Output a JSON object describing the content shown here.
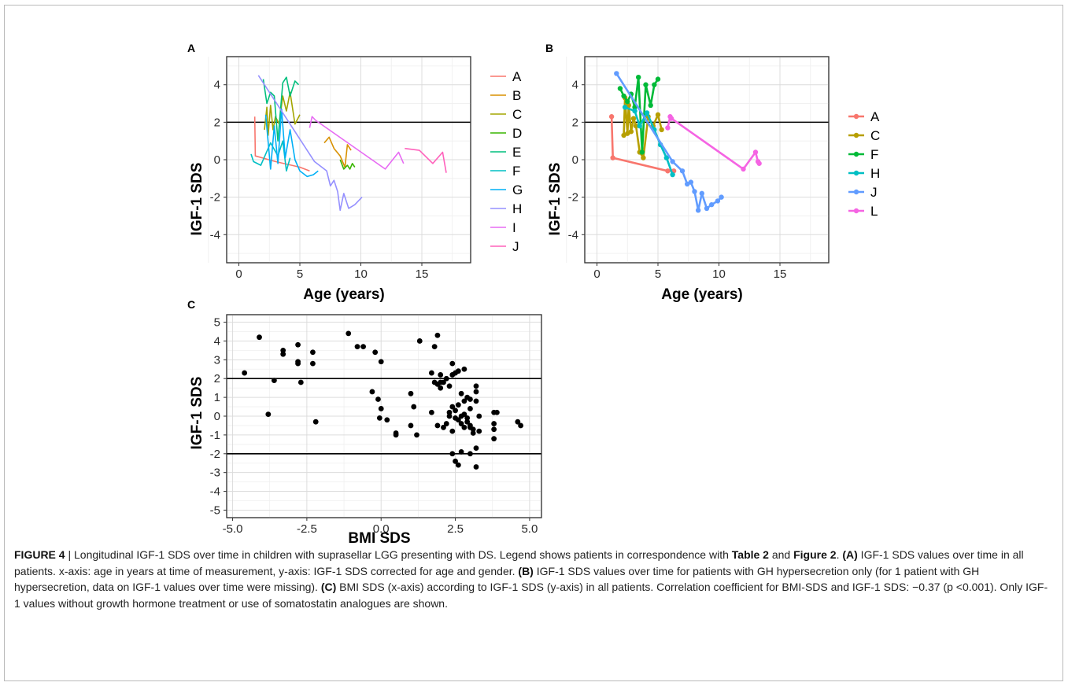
{
  "figure": {
    "number_label": "FIGURE 4"
  },
  "panels": [
    {
      "tag": "A",
      "xlabel": "Age (years)",
      "ylabel": "IGF-1 SDS",
      "xticks": [
        "0",
        "5",
        "10",
        "15"
      ],
      "yticks": [
        "-4",
        "-2",
        "0",
        "2",
        "4"
      ]
    },
    {
      "tag": "B",
      "xlabel": "Age (years)",
      "ylabel": "IGF-1 SDS",
      "xticks": [
        "0",
        "5",
        "10",
        "15"
      ],
      "yticks": [
        "-4",
        "-2",
        "0",
        "2",
        "4"
      ]
    },
    {
      "tag": "C",
      "xlabel": "BMI SDS",
      "ylabel": "IGF-1 SDS",
      "xticks": [
        "-5.0",
        "-2.5",
        "0.0",
        "2.5",
        "5.0"
      ],
      "yticks": [
        "-5",
        "-4",
        "-3",
        "-2",
        "-1",
        "0",
        "1",
        "2",
        "3",
        "4",
        "5"
      ]
    }
  ],
  "caption": {
    "figure_label": "FIGURE 4",
    "separator": " | ",
    "s1": "Longitudinal IGF-1 SDS over time in children with suprasellar LGG presenting with DS. Legend shows patients in correspondence with ",
    "ref_table": "Table 2",
    "s2": " and ",
    "ref_figure": "Figure 2",
    "s3": ". ",
    "tag_a": "(A)",
    "s4": " IGF-1 SDS values over time in all patients. x-axis: age in years at time of measurement, y-axis: IGF-1 SDS corrected for age and gender. ",
    "tag_b": "(B)",
    "s5": " IGF-1 SDS values over time for patients with GH hypersecretion only (for 1 patient with GH hypersecretion, data on IGF-1 values over time were missing). ",
    "tag_c": "(C)",
    "s6": " BMI SDS (x-axis) according to IGF-1 SDS (y-axis) in all patients. Correlation coefficient for BMI-SDS and IGF-1 SDS: −0.37 (p <0.001). Only IGF-1 values without growth hormone treatment or use of somatostatin analogues are shown."
  },
  "chart_data": [
    {
      "panel": "A",
      "type": "line",
      "xlabel": "Age (years)",
      "ylabel": "IGF-1 SDS",
      "xlim": [
        -1,
        19
      ],
      "ylim": [
        -5.5,
        5.5
      ],
      "reference_lines_y": [
        2
      ],
      "grid": true,
      "legend_position": "right",
      "series": [
        {
          "name": "A",
          "color": "#F8766D",
          "x": [
            1.3,
            1.35,
            3.0,
            5.0,
            5.8
          ],
          "y": [
            2.3,
            0.2,
            -0.1,
            -0.4,
            -0.6
          ]
        },
        {
          "name": "B",
          "color": "#D89000",
          "x": [
            7.0,
            7.4,
            7.8,
            8.3,
            8.7,
            8.9,
            9.2
          ],
          "y": [
            0.9,
            1.2,
            0.6,
            0.2,
            -0.4,
            0.8,
            0.5
          ]
        },
        {
          "name": "C",
          "color": "#A3A500",
          "x": [
            2.1,
            2.3,
            2.4,
            2.6,
            2.8,
            3.0,
            3.3,
            3.6,
            3.9,
            4.2,
            4.6,
            5.0
          ],
          "y": [
            1.6,
            2.8,
            1.3,
            2.9,
            1.6,
            2.3,
            1.9,
            3.4,
            2.6,
            3.6,
            1.9,
            2.4
          ]
        },
        {
          "name": "D",
          "color": "#39B600",
          "x": [
            8.3,
            8.6,
            8.9,
            9.1,
            9.3,
            9.5
          ],
          "y": [
            0.0,
            -0.5,
            -0.3,
            -0.5,
            -0.2,
            -0.4
          ]
        },
        {
          "name": "E",
          "color": "#00BF7D",
          "x": [
            2.0,
            2.3,
            2.6,
            2.9,
            3.2,
            3.6,
            3.9,
            4.2,
            4.6,
            4.9
          ],
          "y": [
            4.3,
            3.0,
            3.6,
            3.4,
            1.0,
            4.1,
            4.4,
            3.4,
            4.2,
            4.0
          ]
        },
        {
          "name": "F",
          "color": "#00BFC4",
          "x": [
            1.0,
            1.2,
            1.8,
            2.6,
            3.2,
            3.6,
            3.9,
            4.2
          ],
          "y": [
            0.3,
            -0.1,
            -0.3,
            0.9,
            0.2,
            1.0,
            -0.6,
            0.1
          ]
        },
        {
          "name": "G",
          "color": "#00B0F6",
          "x": [
            2.2,
            2.6,
            2.9,
            3.2,
            3.5,
            3.8,
            4.2,
            4.6,
            5.0,
            5.6,
            6.1,
            6.5
          ],
          "y": [
            2.4,
            -0.5,
            1.8,
            -0.2,
            2.7,
            0.1,
            1.6,
            0.0,
            -0.6,
            -0.9,
            -0.8,
            -0.6
          ]
        },
        {
          "name": "H",
          "color": "#9590FF",
          "x": [
            1.6,
            6.2,
            7.2,
            7.5,
            7.8,
            8.1,
            8.3,
            8.6,
            9.0,
            9.5,
            10.1
          ],
          "y": [
            4.5,
            -0.1,
            -0.6,
            -1.4,
            -1.1,
            -1.7,
            -2.7,
            -1.8,
            -2.6,
            -2.4,
            -2.0
          ]
        },
        {
          "name": "I",
          "color": "#E76BF3",
          "x": [
            5.8,
            6.0,
            6.3,
            12.0,
            13.1,
            13.5
          ],
          "y": [
            1.7,
            2.3,
            2.1,
            -0.5,
            0.4,
            -0.2
          ]
        },
        {
          "name": "J",
          "color": "#FF62BC",
          "x": [
            13.6,
            14.8,
            15.9,
            16.7,
            17.0
          ],
          "y": [
            0.6,
            0.5,
            -0.2,
            0.4,
            -0.7
          ]
        }
      ]
    },
    {
      "panel": "B",
      "type": "line",
      "xlabel": "Age (years)",
      "ylabel": "IGF-1 SDS",
      "xlim": [
        -1,
        19
      ],
      "ylim": [
        -5.5,
        5.5
      ],
      "reference_lines_y": [
        2
      ],
      "grid": true,
      "legend_position": "right",
      "markers": true,
      "series": [
        {
          "name": "A",
          "color": "#F8766D",
          "x": [
            1.2,
            1.3,
            5.8,
            6.3
          ],
          "y": [
            2.3,
            0.1,
            -0.6,
            -0.6
          ]
        },
        {
          "name": "C",
          "color": "#B79F00",
          "x": [
            2.2,
            2.3,
            2.5,
            2.6,
            2.8,
            3.0,
            3.2,
            3.5,
            3.8,
            4.2,
            4.6,
            5.0,
            5.3
          ],
          "y": [
            1.3,
            3.3,
            1.4,
            2.9,
            1.5,
            2.2,
            1.8,
            0.4,
            0.1,
            2.3,
            1.8,
            2.4,
            1.6
          ]
        },
        {
          "name": "F",
          "color": "#00BA38",
          "x": [
            1.9,
            2.2,
            2.5,
            2.8,
            3.1,
            3.4,
            3.7,
            4.0,
            4.4,
            4.7,
            5.0
          ],
          "y": [
            3.8,
            3.4,
            3.1,
            3.5,
            2.8,
            4.4,
            0.4,
            4.0,
            2.9,
            4.0,
            4.3
          ]
        },
        {
          "name": "H",
          "color": "#00BFC4",
          "x": [
            2.3,
            3.1,
            3.5,
            4.1,
            4.7,
            5.2,
            5.7,
            6.2
          ],
          "y": [
            2.8,
            2.6,
            1.8,
            2.5,
            1.6,
            0.8,
            0.1,
            -0.8
          ]
        },
        {
          "name": "J",
          "color": "#619CFF",
          "x": [
            1.6,
            6.2,
            7.0,
            7.4,
            7.7,
            8.0,
            8.3,
            8.6,
            9.0,
            9.4,
            9.9,
            10.2
          ],
          "y": [
            4.6,
            -0.1,
            -0.6,
            -1.3,
            -1.2,
            -1.7,
            -2.7,
            -1.8,
            -2.6,
            -2.4,
            -2.2,
            -2.0
          ]
        },
        {
          "name": "L",
          "color": "#F564E3",
          "x": [
            5.8,
            6.0,
            6.1,
            12.0,
            13.0,
            13.2,
            13.3
          ],
          "y": [
            1.7,
            2.3,
            2.2,
            -0.5,
            0.4,
            -0.1,
            -0.2
          ]
        }
      ]
    },
    {
      "panel": "C",
      "type": "scatter",
      "xlabel": "BMI SDS",
      "ylabel": "IGF-1 SDS",
      "xlim": [
        -5.2,
        5.4
      ],
      "ylim": [
        -5.4,
        5.4
      ],
      "reference_lines_y": [
        2,
        -2
      ],
      "grid": true,
      "points": [
        [
          -4.6,
          2.3
        ],
        [
          -4.1,
          4.2
        ],
        [
          -3.8,
          0.1
        ],
        [
          -3.6,
          1.9
        ],
        [
          -3.3,
          3.5
        ],
        [
          -3.3,
          3.3
        ],
        [
          -2.8,
          3.8
        ],
        [
          -2.8,
          2.9
        ],
        [
          -2.8,
          2.8
        ],
        [
          -2.7,
          1.8
        ],
        [
          -2.3,
          3.4
        ],
        [
          -2.3,
          2.8
        ],
        [
          -2.2,
          -0.3
        ],
        [
          -1.1,
          4.4
        ],
        [
          -0.8,
          3.7
        ],
        [
          -0.6,
          3.7
        ],
        [
          -0.3,
          1.3
        ],
        [
          -0.2,
          3.4
        ],
        [
          -0.1,
          0.9
        ],
        [
          0.0,
          2.9
        ],
        [
          0.0,
          0.4
        ],
        [
          -0.05,
          -0.1
        ],
        [
          0.2,
          -0.2
        ],
        [
          0.5,
          -0.9
        ],
        [
          0.5,
          -1.0
        ],
        [
          1.0,
          1.2
        ],
        [
          1.0,
          -0.5
        ],
        [
          1.1,
          0.5
        ],
        [
          1.2,
          -1.0
        ],
        [
          1.3,
          4.0
        ],
        [
          1.7,
          2.3
        ],
        [
          1.8,
          3.7
        ],
        [
          1.8,
          1.8
        ],
        [
          1.9,
          4.3
        ],
        [
          1.9,
          1.7
        ],
        [
          1.7,
          0.2
        ],
        [
          2.0,
          2.2
        ],
        [
          2.0,
          1.8
        ],
        [
          2.0,
          1.5
        ],
        [
          2.1,
          1.8
        ],
        [
          2.2,
          2.0
        ],
        [
          2.3,
          1.6
        ],
        [
          1.9,
          -0.5
        ],
        [
          2.1,
          -0.6
        ],
        [
          2.2,
          -0.4
        ],
        [
          2.3,
          0.0
        ],
        [
          2.4,
          2.8
        ],
        [
          2.4,
          2.2
        ],
        [
          2.5,
          2.3
        ],
        [
          2.6,
          2.4
        ],
        [
          2.8,
          2.5
        ],
        [
          2.4,
          0.5
        ],
        [
          2.5,
          0.3
        ],
        [
          2.6,
          -0.2
        ],
        [
          2.7,
          -0.4
        ],
        [
          2.8,
          0.1
        ],
        [
          2.9,
          -0.3
        ],
        [
          2.3,
          0.2
        ],
        [
          2.4,
          -0.8
        ],
        [
          2.5,
          -0.1
        ],
        [
          2.6,
          0.6
        ],
        [
          2.7,
          0.0
        ],
        [
          2.8,
          0.8
        ],
        [
          2.9,
          1.0
        ],
        [
          3.0,
          -0.6
        ],
        [
          3.1,
          -0.7
        ],
        [
          3.2,
          0.8
        ],
        [
          3.2,
          1.3
        ],
        [
          3.3,
          0.0
        ],
        [
          3.3,
          -0.8
        ],
        [
          3.2,
          1.6
        ],
        [
          3.0,
          0.4
        ],
        [
          2.4,
          -2.0
        ],
        [
          2.5,
          -2.4
        ],
        [
          2.6,
          -2.6
        ],
        [
          2.7,
          -1.9
        ],
        [
          3.0,
          -2.0
        ],
        [
          3.1,
          -0.9
        ],
        [
          3.2,
          -1.7
        ],
        [
          3.2,
          -2.7
        ],
        [
          2.8,
          -0.6
        ],
        [
          2.9,
          -0.1
        ],
        [
          3.0,
          -0.5
        ],
        [
          2.7,
          1.2
        ],
        [
          3.0,
          0.9
        ],
        [
          3.8,
          0.2
        ],
        [
          3.9,
          0.2
        ],
        [
          3.8,
          -0.4
        ],
        [
          3.8,
          -0.7
        ],
        [
          3.8,
          -1.2
        ],
        [
          4.6,
          -0.3
        ],
        [
          4.7,
          -0.5
        ]
      ]
    }
  ]
}
